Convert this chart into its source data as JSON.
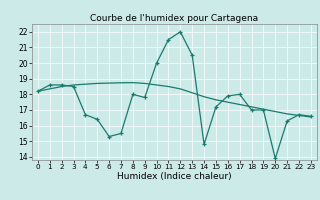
{
  "title": "Courbe de l'humidex pour Cartagena",
  "xlabel": "Humidex (Indice chaleur)",
  "xlim": [
    -0.5,
    23.5
  ],
  "ylim": [
    13.8,
    22.5
  ],
  "yticks": [
    14,
    15,
    16,
    17,
    18,
    19,
    20,
    21,
    22
  ],
  "xticks": [
    0,
    1,
    2,
    3,
    4,
    5,
    6,
    7,
    8,
    9,
    10,
    11,
    12,
    13,
    14,
    15,
    16,
    17,
    18,
    19,
    20,
    21,
    22,
    23
  ],
  "bg_color": "#cceae8",
  "line_color": "#1a7a6e",
  "zigzag_x": [
    0,
    1,
    2,
    3,
    4,
    5,
    6,
    7,
    8,
    9,
    10,
    11,
    12,
    13,
    14,
    15,
    16,
    17,
    18,
    19,
    20,
    21,
    22,
    23
  ],
  "zigzag_y": [
    18.2,
    18.6,
    18.6,
    18.5,
    16.7,
    16.4,
    15.3,
    15.5,
    18.0,
    17.8,
    20.0,
    21.5,
    22.0,
    20.5,
    14.8,
    17.2,
    17.9,
    18.0,
    17.0,
    17.0,
    13.9,
    16.3,
    16.7,
    16.6
  ],
  "trend_x": [
    0,
    1,
    2,
    3,
    4,
    5,
    6,
    7,
    8,
    9,
    10,
    11,
    12,
    13,
    14,
    15,
    16,
    17,
    18,
    19,
    20,
    21,
    22,
    23
  ],
  "trend_y": [
    18.2,
    18.35,
    18.5,
    18.6,
    18.65,
    18.7,
    18.72,
    18.74,
    18.75,
    18.7,
    18.6,
    18.5,
    18.35,
    18.1,
    17.85,
    17.65,
    17.5,
    17.35,
    17.2,
    17.05,
    16.9,
    16.75,
    16.65,
    16.55
  ]
}
